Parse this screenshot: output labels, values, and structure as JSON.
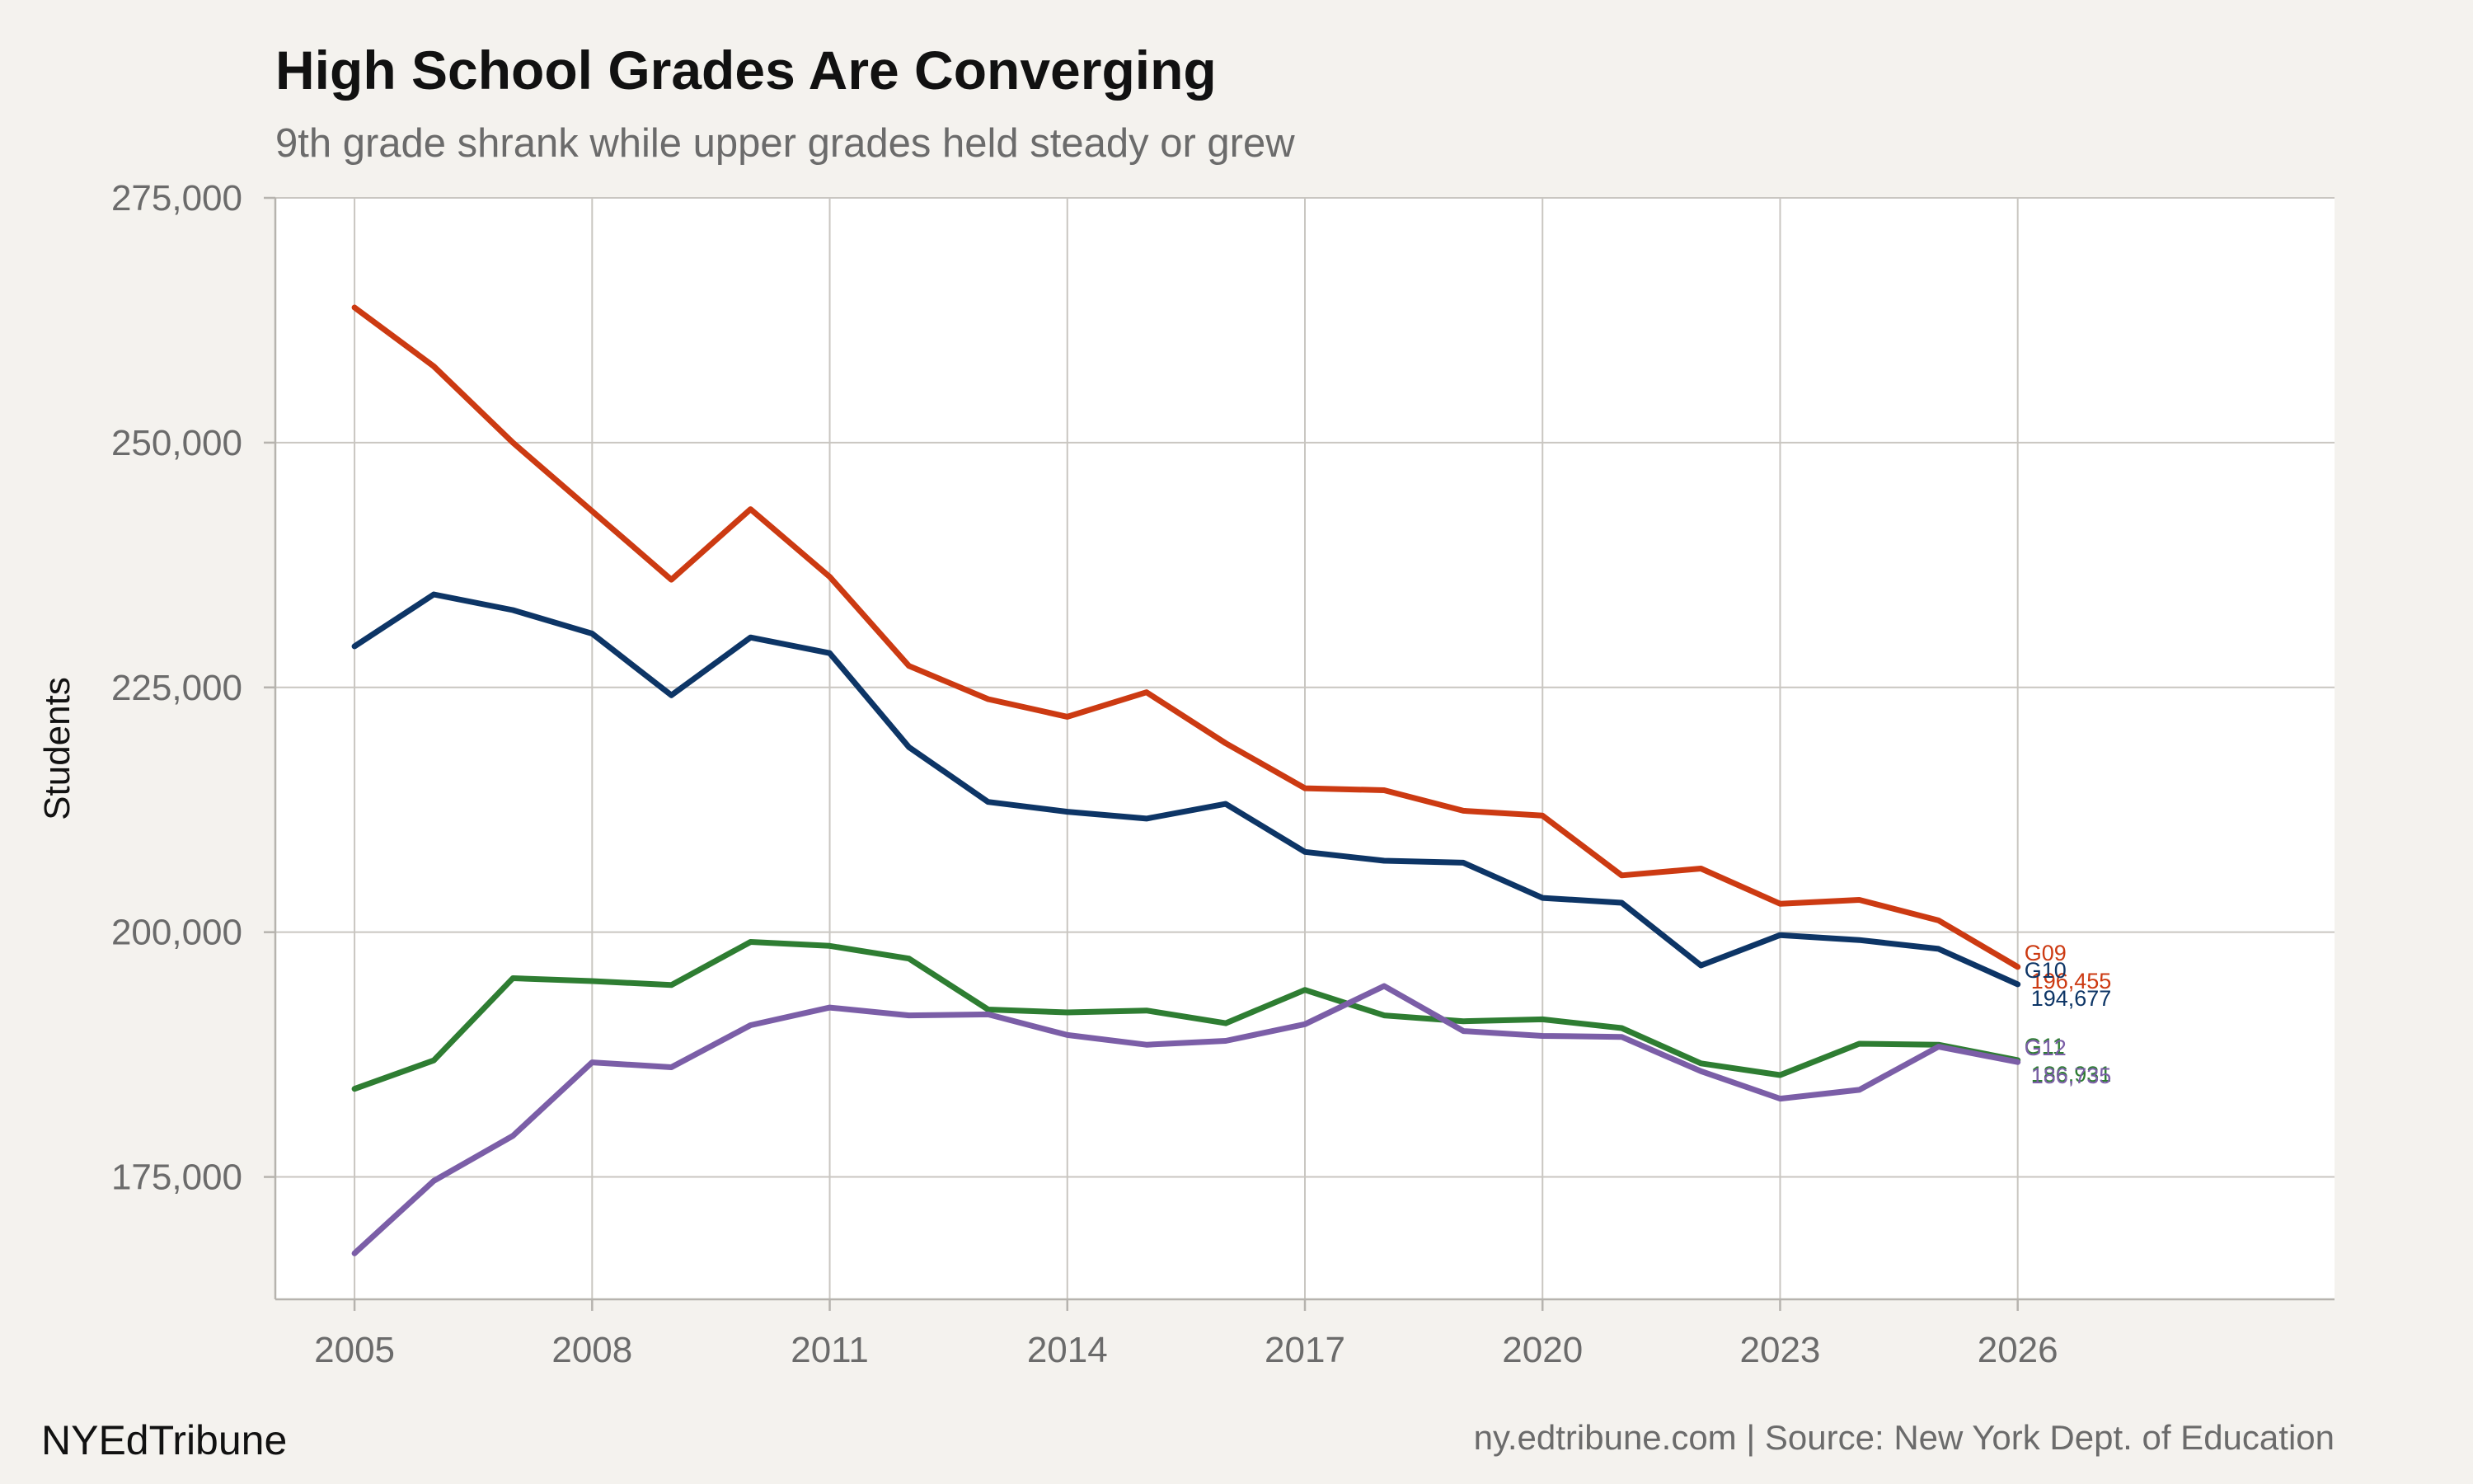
{
  "header": {
    "title": "High School Grades Are Converging",
    "subtitle": "9th grade shrank while upper grades held steady or grew"
  },
  "footer": {
    "brand": "NYEdTribune",
    "source": "ny.edtribune.com | Source: New York Dept. of Education"
  },
  "chart_data": {
    "type": "line",
    "title": "High School Grades Are Converging",
    "subtitle": "9th grade shrank while upper grades held steady or grew",
    "xlabel": "",
    "ylabel": "Students",
    "xlim": [
      2004,
      2030
    ],
    "ylim": [
      162500,
      275000
    ],
    "x_ticks": [
      2005,
      2008,
      2011,
      2014,
      2017,
      2020,
      2023,
      2026
    ],
    "x_tick_labels": [
      "2005",
      "2008",
      "2011",
      "2014",
      "2017",
      "2020",
      "2023",
      "2026"
    ],
    "y_ticks": [
      175000,
      200000,
      225000,
      250000,
      275000
    ],
    "y_tick_labels": [
      "175,000",
      "200,000",
      "225,000",
      "250,000",
      "275,000"
    ],
    "grid": true,
    "legend": "none (direct end labels)",
    "x": [
      2005,
      2006,
      2007,
      2008,
      2009,
      2010,
      2011,
      2012,
      2013,
      2014,
      2015,
      2016,
      2017,
      2018,
      2019,
      2020,
      2021,
      2022,
      2023,
      2024,
      2025,
      2026
    ],
    "series": [
      {
        "name": "G09",
        "color": "#cc3a12",
        "end_label": "196,455",
        "values": [
          263800,
          257800,
          250000,
          243000,
          236000,
          243200,
          236300,
          227200,
          223800,
          222000,
          224500,
          219300,
          214700,
          214500,
          212400,
          211900,
          205800,
          206500,
          202900,
          203300,
          201200,
          196455
        ]
      },
      {
        "name": "G10",
        "color": "#0d3566",
        "end_label": "194,677",
        "values": [
          229200,
          234500,
          232900,
          230500,
          224200,
          230100,
          228500,
          218900,
          213300,
          212300,
          211600,
          213100,
          208200,
          207300,
          207100,
          203500,
          203000,
          196600,
          199700,
          199200,
          198300,
          194677
        ]
      },
      {
        "name": "G11",
        "color": "#2e7d32",
        "end_label": "186,931",
        "values": [
          184000,
          186900,
          195300,
          195000,
          194600,
          199000,
          198600,
          197300,
          192100,
          191800,
          192000,
          190700,
          194100,
          191500,
          190900,
          191100,
          190200,
          186600,
          185400,
          188600,
          188500,
          186931
        ]
      },
      {
        "name": "G12",
        "color": "#7b5ea7",
        "end_label": "186,735",
        "values": [
          167200,
          174600,
          179200,
          186700,
          186200,
          190500,
          192300,
          191500,
          191600,
          189500,
          188500,
          188900,
          190600,
          194500,
          189900,
          189400,
          189300,
          185800,
          183000,
          183900,
          188300,
          186735
        ]
      }
    ]
  }
}
